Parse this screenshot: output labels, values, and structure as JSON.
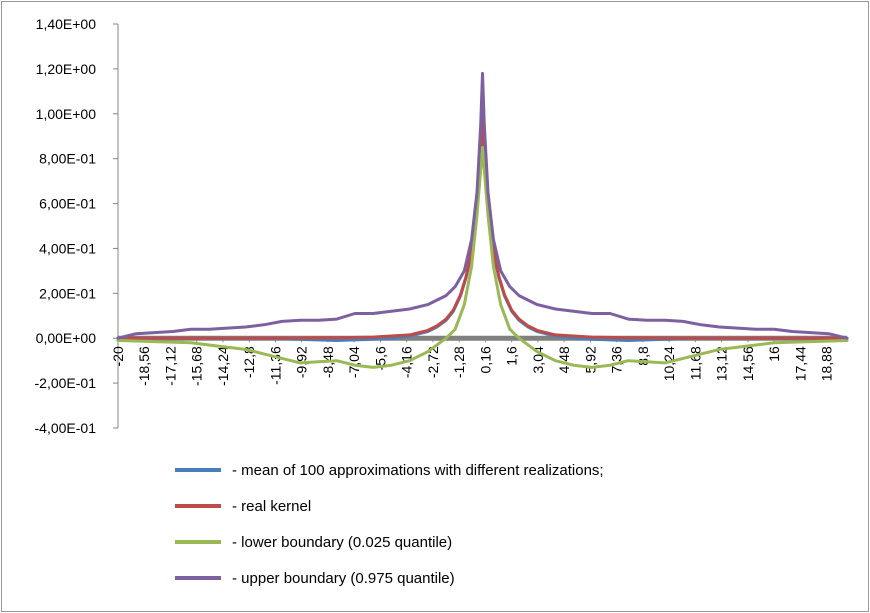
{
  "chart_data": {
    "type": "line",
    "title": "",
    "xlabel": "",
    "ylabel": "",
    "ylim": [
      -0.4,
      1.4
    ],
    "xlim": [
      -20,
      20
    ],
    "y_ticks": [
      {
        "value": 1.4,
        "label": "1,40E+00"
      },
      {
        "value": 1.2,
        "label": "1,20E+00"
      },
      {
        "value": 1.0,
        "label": "1,00E+00"
      },
      {
        "value": 0.8,
        "label": "8,00E-01"
      },
      {
        "value": 0.6,
        "label": "6,00E-01"
      },
      {
        "value": 0.4,
        "label": "4,00E-01"
      },
      {
        "value": 0.2,
        "label": "2,00E-01"
      },
      {
        "value": 0.0,
        "label": "0,00E+00"
      },
      {
        "value": -0.2,
        "label": "-2,00E-01"
      },
      {
        "value": -0.4,
        "label": "-4,00E-01"
      }
    ],
    "x_ticks": [
      {
        "value": -20,
        "label": "-20"
      },
      {
        "value": -18.56,
        "label": "-18,56"
      },
      {
        "value": -17.12,
        "label": "-17,12"
      },
      {
        "value": -15.68,
        "label": "-15,68"
      },
      {
        "value": -14.24,
        "label": "-14,24"
      },
      {
        "value": -12.8,
        "label": "-12,8"
      },
      {
        "value": -11.36,
        "label": "-11,36"
      },
      {
        "value": -9.92,
        "label": "-9,92"
      },
      {
        "value": -8.48,
        "label": "-8,48"
      },
      {
        "value": -7.04,
        "label": "-7,04"
      },
      {
        "value": -5.6,
        "label": "-5,6"
      },
      {
        "value": -4.16,
        "label": "-4,16"
      },
      {
        "value": -2.72,
        "label": "-2,72"
      },
      {
        "value": -1.28,
        "label": "-1,28"
      },
      {
        "value": 0.16,
        "label": "0,16"
      },
      {
        "value": 1.6,
        "label": "1,6"
      },
      {
        "value": 3.04,
        "label": "3,04"
      },
      {
        "value": 4.48,
        "label": "4,48"
      },
      {
        "value": 5.92,
        "label": "5,92"
      },
      {
        "value": 7.36,
        "label": "7,36"
      },
      {
        "value": 8.8,
        "label": "8,8"
      },
      {
        "value": 10.24,
        "label": "10,24"
      },
      {
        "value": 11.68,
        "label": "11,68"
      },
      {
        "value": 13.12,
        "label": "13,12"
      },
      {
        "value": 14.56,
        "label": "14,56"
      },
      {
        "value": 16,
        "label": "16"
      },
      {
        "value": 17.44,
        "label": "17,44"
      },
      {
        "value": 18.88,
        "label": "18,88"
      }
    ],
    "series": [
      {
        "name": "- mean of 100 approximations with different realizations;",
        "color": "#4a7ebb",
        "points": [
          [
            -20,
            0
          ],
          [
            -16,
            0
          ],
          [
            -12,
            0
          ],
          [
            -8,
            -0.01
          ],
          [
            -6,
            -0.005
          ],
          [
            -5,
            0
          ],
          [
            -4,
            0.01
          ],
          [
            -3,
            0.03
          ],
          [
            -2.5,
            0.05
          ],
          [
            -2,
            0.08
          ],
          [
            -1.6,
            0.12
          ],
          [
            -1.2,
            0.19
          ],
          [
            -0.9,
            0.27
          ],
          [
            -0.6,
            0.38
          ],
          [
            -0.4,
            0.5
          ],
          [
            -0.2,
            0.67
          ],
          [
            -0.08,
            0.82
          ],
          [
            0,
            0.93
          ],
          [
            0.08,
            0.82
          ],
          [
            0.2,
            0.67
          ],
          [
            0.4,
            0.5
          ],
          [
            0.6,
            0.38
          ],
          [
            0.9,
            0.27
          ],
          [
            1.2,
            0.19
          ],
          [
            1.6,
            0.12
          ],
          [
            2,
            0.08
          ],
          [
            2.5,
            0.05
          ],
          [
            3,
            0.03
          ],
          [
            4,
            0.01
          ],
          [
            5,
            0
          ],
          [
            6,
            -0.005
          ],
          [
            8,
            -0.01
          ],
          [
            12,
            0
          ],
          [
            16,
            0
          ],
          [
            20,
            0
          ]
        ]
      },
      {
        "name": "- real kernel",
        "color": "#be4b48",
        "points": [
          [
            -20,
            0
          ],
          [
            -12,
            0
          ],
          [
            -8,
            0.002
          ],
          [
            -6,
            0.005
          ],
          [
            -4,
            0.015
          ],
          [
            -3,
            0.035
          ],
          [
            -2.5,
            0.055
          ],
          [
            -2,
            0.085
          ],
          [
            -1.6,
            0.125
          ],
          [
            -1.2,
            0.195
          ],
          [
            -0.9,
            0.275
          ],
          [
            -0.6,
            0.39
          ],
          [
            -0.4,
            0.51
          ],
          [
            -0.2,
            0.69
          ],
          [
            -0.08,
            0.86
          ],
          [
            0,
            0.98
          ],
          [
            0.08,
            0.86
          ],
          [
            0.2,
            0.69
          ],
          [
            0.4,
            0.51
          ],
          [
            0.6,
            0.39
          ],
          [
            0.9,
            0.275
          ],
          [
            1.2,
            0.195
          ],
          [
            1.6,
            0.125
          ],
          [
            2,
            0.085
          ],
          [
            2.5,
            0.055
          ],
          [
            3,
            0.035
          ],
          [
            4,
            0.015
          ],
          [
            6,
            0.005
          ],
          [
            8,
            0.002
          ],
          [
            12,
            0
          ],
          [
            20,
            0
          ]
        ]
      },
      {
        "name": "- lower boundary (0.025 quantile)",
        "color": "#98b954",
        "points": [
          [
            -20,
            -0.01
          ],
          [
            -18,
            -0.015
          ],
          [
            -16,
            -0.02
          ],
          [
            -15,
            -0.03
          ],
          [
            -14,
            -0.04
          ],
          [
            -13,
            -0.05
          ],
          [
            -12,
            -0.07
          ],
          [
            -11,
            -0.09
          ],
          [
            -10,
            -0.11
          ],
          [
            -9,
            -0.105
          ],
          [
            -8,
            -0.1
          ],
          [
            -7,
            -0.12
          ],
          [
            -6,
            -0.13
          ],
          [
            -5,
            -0.12
          ],
          [
            -4,
            -0.1
          ],
          [
            -3,
            -0.06
          ],
          [
            -2,
            0
          ],
          [
            -1.5,
            0.04
          ],
          [
            -1,
            0.15
          ],
          [
            -0.6,
            0.32
          ],
          [
            -0.3,
            0.55
          ],
          [
            -0.1,
            0.75
          ],
          [
            0,
            0.85
          ],
          [
            0.1,
            0.75
          ],
          [
            0.3,
            0.55
          ],
          [
            0.6,
            0.32
          ],
          [
            1,
            0.15
          ],
          [
            1.5,
            0.04
          ],
          [
            2,
            0
          ],
          [
            3,
            -0.06
          ],
          [
            4,
            -0.1
          ],
          [
            5,
            -0.12
          ],
          [
            6,
            -0.13
          ],
          [
            7,
            -0.12
          ],
          [
            8,
            -0.1
          ],
          [
            9,
            -0.105
          ],
          [
            10,
            -0.11
          ],
          [
            11,
            -0.09
          ],
          [
            12,
            -0.07
          ],
          [
            13,
            -0.05
          ],
          [
            14,
            -0.04
          ],
          [
            15,
            -0.03
          ],
          [
            16,
            -0.02
          ],
          [
            18,
            -0.015
          ],
          [
            20,
            -0.01
          ]
        ]
      },
      {
        "name": "- upper boundary (0.975 quantile)",
        "color": "#7d60a0",
        "points": [
          [
            -20,
            0
          ],
          [
            -19,
            0.02
          ],
          [
            -18,
            0.025
          ],
          [
            -17,
            0.03
          ],
          [
            -16,
            0.04
          ],
          [
            -15,
            0.04
          ],
          [
            -14,
            0.045
          ],
          [
            -13,
            0.05
          ],
          [
            -12,
            0.06
          ],
          [
            -11,
            0.075
          ],
          [
            -10,
            0.08
          ],
          [
            -9,
            0.08
          ],
          [
            -8,
            0.085
          ],
          [
            -7,
            0.11
          ],
          [
            -6,
            0.11
          ],
          [
            -5,
            0.12
          ],
          [
            -4,
            0.13
          ],
          [
            -3,
            0.15
          ],
          [
            -2.5,
            0.17
          ],
          [
            -2,
            0.19
          ],
          [
            -1.5,
            0.23
          ],
          [
            -1,
            0.3
          ],
          [
            -0.6,
            0.44
          ],
          [
            -0.3,
            0.65
          ],
          [
            -0.1,
            0.95
          ],
          [
            0,
            1.18
          ],
          [
            0.1,
            0.95
          ],
          [
            0.3,
            0.65
          ],
          [
            0.6,
            0.44
          ],
          [
            1,
            0.3
          ],
          [
            1.5,
            0.23
          ],
          [
            2,
            0.19
          ],
          [
            2.5,
            0.17
          ],
          [
            3,
            0.15
          ],
          [
            4,
            0.13
          ],
          [
            5,
            0.12
          ],
          [
            6,
            0.11
          ],
          [
            7,
            0.11
          ],
          [
            8,
            0.085
          ],
          [
            9,
            0.08
          ],
          [
            10,
            0.08
          ],
          [
            11,
            0.075
          ],
          [
            12,
            0.06
          ],
          [
            13,
            0.05
          ],
          [
            14,
            0.045
          ],
          [
            15,
            0.04
          ],
          [
            16,
            0.04
          ],
          [
            17,
            0.03
          ],
          [
            18,
            0.025
          ],
          [
            19,
            0.02
          ],
          [
            20,
            0
          ]
        ]
      }
    ],
    "zero_line_color": "#808080"
  }
}
